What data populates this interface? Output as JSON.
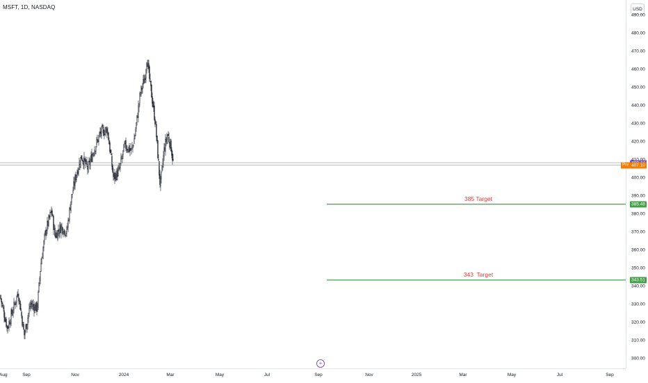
{
  "header": {
    "symbol_line": "MSFT, 1D, NASDAQ"
  },
  "price_scale": {
    "currency": "USD",
    "ticks": [
      "490.00",
      "480.00",
      "470.00",
      "460.00",
      "450.00",
      "440.00",
      "430.00",
      "420.00",
      "410.00",
      "400.00",
      "390.00",
      "380.00",
      "370.00",
      "360.00",
      "350.00",
      "340.00",
      "330.00",
      "320.00",
      "310.00",
      "300.00"
    ]
  },
  "time_scale": {
    "ticks": [
      "Aug",
      "Sep",
      "Nov",
      "2024",
      "Mar",
      "May",
      "Jul",
      "Sep",
      "Nov",
      "2025",
      "Mar",
      "May",
      "Jul",
      "Sep"
    ]
  },
  "labels": {
    "last_price": "408.44",
    "pre_tag": "Pre",
    "pre_price": "407.10",
    "target1_price": "385.48",
    "target1_text": "385 Target",
    "target2_price": "343.51",
    "target2_text": "343  Target"
  },
  "colors": {
    "candle": "#131722",
    "target_line": "#43a047",
    "target_text": "#e53935",
    "last_price_badge": "#7e57c2",
    "pre_line": "#f57c00",
    "last_line": "#9598a1"
  },
  "icons": {
    "event": "plus-circle-icon"
  },
  "chart_data": {
    "type": "candlestick",
    "title": "MSFT, 1D, NASDAQ",
    "ylim": [
      300,
      490
    ],
    "x_range": [
      "2023-08",
      "2025-09"
    ],
    "close_path": [
      {
        "date": "2023-08-01",
        "close": 335
      },
      {
        "date": "2023-08-18",
        "close": 317
      },
      {
        "date": "2023-09-01",
        "close": 328
      },
      {
        "date": "2023-09-12",
        "close": 337
      },
      {
        "date": "2023-09-26",
        "close": 313
      },
      {
        "date": "2023-10-10",
        "close": 330
      },
      {
        "date": "2023-10-26",
        "close": 328
      },
      {
        "date": "2023-11-03",
        "close": 352
      },
      {
        "date": "2023-11-14",
        "close": 370
      },
      {
        "date": "2023-11-28",
        "close": 382
      },
      {
        "date": "2023-12-06",
        "close": 368
      },
      {
        "date": "2023-12-20",
        "close": 373
      },
      {
        "date": "2024-01-02",
        "close": 370
      },
      {
        "date": "2024-01-12",
        "close": 388
      },
      {
        "date": "2024-01-24",
        "close": 402
      },
      {
        "date": "2024-02-05",
        "close": 412
      },
      {
        "date": "2024-02-20",
        "close": 405
      },
      {
        "date": "2024-03-04",
        "close": 415
      },
      {
        "date": "2024-03-20",
        "close": 425
      },
      {
        "date": "2024-04-05",
        "close": 427
      },
      {
        "date": "2024-04-19",
        "close": 400
      },
      {
        "date": "2024-05-02",
        "close": 404
      },
      {
        "date": "2024-05-15",
        "close": 418
      },
      {
        "date": "2024-05-31",
        "close": 415
      },
      {
        "date": "2024-06-07",
        "close": 423
      },
      {
        "date": "2024-06-20",
        "close": 447
      },
      {
        "date": "2024-07-01",
        "close": 456
      },
      {
        "date": "2024-07-05",
        "close": 467
      },
      {
        "date": "2024-07-12",
        "close": 453
      },
      {
        "date": "2024-07-25",
        "close": 430
      },
      {
        "date": "2024-08-05",
        "close": 395
      },
      {
        "date": "2024-08-14",
        "close": 416
      },
      {
        "date": "2024-08-22",
        "close": 424
      },
      {
        "date": "2024-08-30",
        "close": 417
      },
      {
        "date": "2024-09-04",
        "close": 408
      }
    ],
    "horizontal_lines": [
      {
        "label": "385 Target",
        "price": 385.48
      },
      {
        "label": "343  Target",
        "price": 343.51
      },
      {
        "label": "Pre",
        "price": 407.1
      },
      {
        "label": "last",
        "price": 408.44
      }
    ]
  }
}
